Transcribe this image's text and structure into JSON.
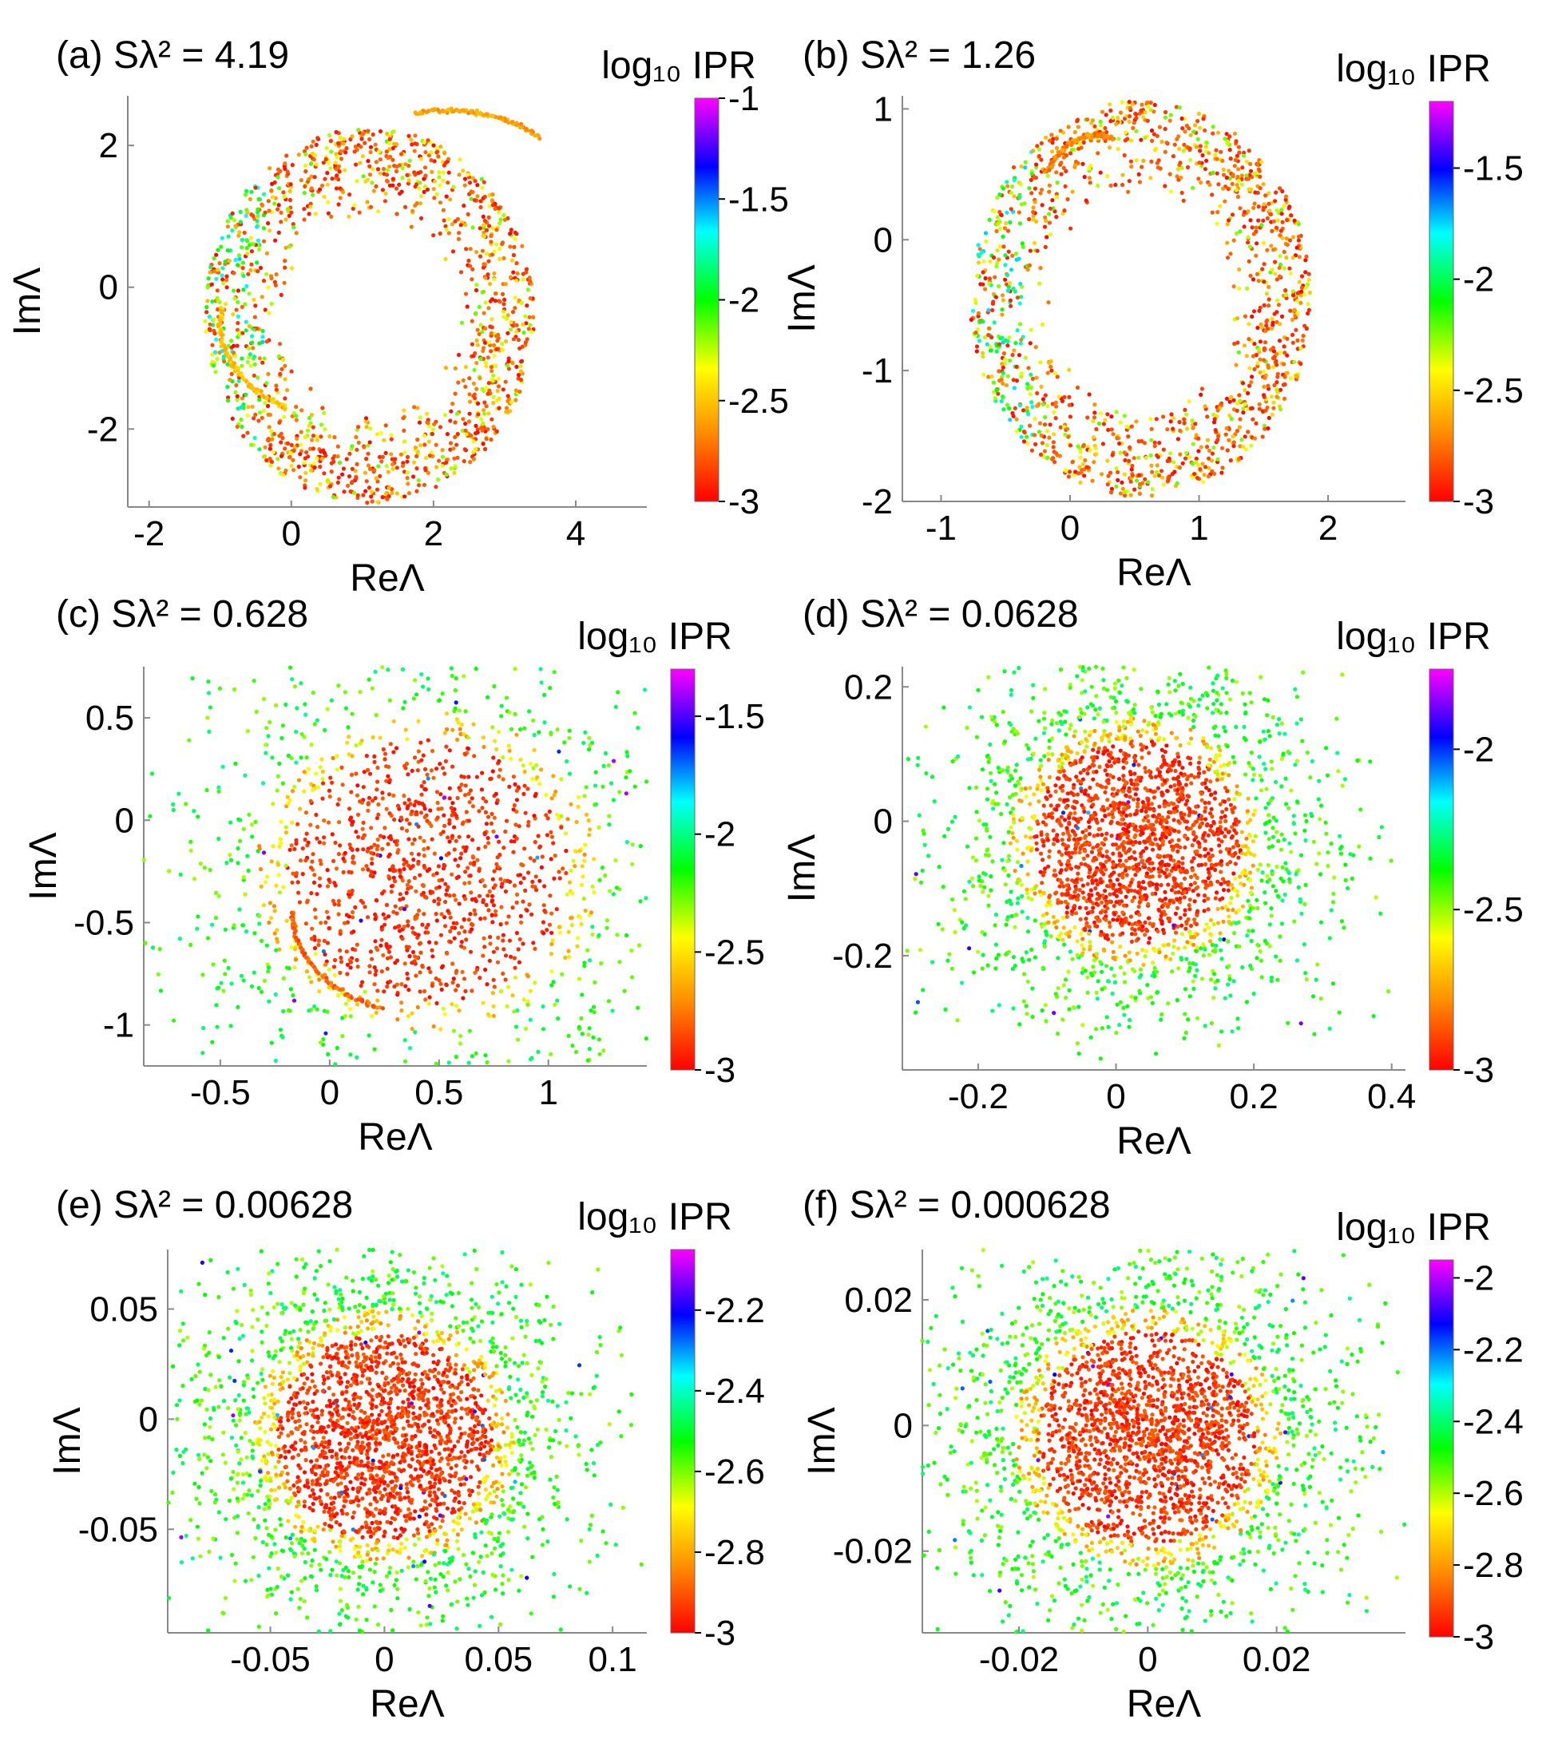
{
  "colors": {
    "scale_stops": [
      "#ff0000",
      "#ff8c00",
      "#ffff00",
      "#00ff00",
      "#00ffff",
      "#0000ff",
      "#ff00ff"
    ],
    "axis": "#888888",
    "text": "#000000"
  },
  "chart_data": [
    {
      "type": "scatter",
      "label": "(a)",
      "title": "Sλ² = 4.19",
      "xlabel": "ReΛ",
      "ylabel": "ImΛ",
      "colorbar_label": "log₁₀ IPR",
      "xlim": [
        -2.3,
        5.0
      ],
      "ylim": [
        -3.1,
        2.7
      ],
      "xticks": [
        -2,
        0,
        2,
        4
      ],
      "yticks": [
        -2,
        0,
        2
      ],
      "cbar_range": [
        -3,
        -1
      ],
      "cbar_ticks": [
        -1,
        -1.5,
        -2,
        -2.5,
        -3
      ],
      "distribution": "ring",
      "center": [
        1.1,
        -0.4
      ],
      "radius": 2.1,
      "n_points": 1400,
      "arcs": [
        {
          "cx": 2.2,
          "cy": -0.4,
          "rx": 2.6,
          "ry": 2.9,
          "from": 60,
          "to": 100,
          "ipr": -2.6
        },
        {
          "cx": 0.9,
          "cy": -0.5,
          "rx": 1.9,
          "ry": 1.4,
          "from": 170,
          "to": 240,
          "ipr": -2.5
        }
      ]
    },
    {
      "type": "scatter",
      "label": "(b)",
      "title": "Sλ² = 1.26",
      "xlabel": "ReΛ",
      "ylabel": "ImΛ",
      "colorbar_label": "log₁₀ IPR",
      "xlim": [
        -1.3,
        2.6
      ],
      "ylim": [
        -2.0,
        1.1
      ],
      "xticks": [
        -1,
        0,
        1,
        2
      ],
      "yticks": [
        -2,
        -1,
        0,
        1
      ],
      "cbar_range": [
        -3,
        -1.2
      ],
      "cbar_ticks": [
        -1.5,
        -2,
        -2.5,
        -3
      ],
      "distribution": "ring",
      "center": [
        0.55,
        -0.45
      ],
      "radius": 1.2,
      "n_points": 1400,
      "arcs": [
        {
          "cx": 0.2,
          "cy": 0.0,
          "rx": 0.5,
          "ry": 0.8,
          "from": 75,
          "to": 140,
          "ipr": -2.7
        }
      ]
    },
    {
      "type": "scatter",
      "label": "(c)",
      "title": "Sλ² = 0.628",
      "xlabel": "ReΛ",
      "ylabel": "ImΛ",
      "colorbar_label": "log₁₀ IPR",
      "xlim": [
        -0.85,
        1.45
      ],
      "ylim": [
        -1.2,
        0.75
      ],
      "xticks": [
        -0.5,
        0,
        0.5,
        1
      ],
      "yticks": [
        -1,
        -0.5,
        0,
        0.5
      ],
      "cbar_range": [
        -3,
        -1.3
      ],
      "cbar_ticks": [
        -1.5,
        -2,
        -2.5,
        -3
      ],
      "distribution": "disc",
      "center": [
        0.45,
        -0.25
      ],
      "radius": 0.68,
      "n_points": 1700,
      "arcs": [
        {
          "cx": 0.45,
          "cy": -0.45,
          "rx": 0.62,
          "ry": 0.5,
          "from": 180,
          "to": 250,
          "ipr": -2.8
        }
      ]
    },
    {
      "type": "scatter",
      "label": "(d)",
      "title": "Sλ² = 0.0628",
      "xlabel": "ReΛ",
      "ylabel": "ImΛ",
      "colorbar_label": "log₁₀ IPR",
      "xlim": [
        -0.31,
        0.42
      ],
      "ylim": [
        -0.37,
        0.23
      ],
      "xticks": [
        -0.2,
        0,
        0.2,
        0.4
      ],
      "yticks": [
        -0.2,
        0,
        0.2
      ],
      "cbar_range": [
        -3,
        -1.75
      ],
      "cbar_ticks": [
        -2,
        -2.5,
        -3
      ],
      "distribution": "disc",
      "center": [
        0.03,
        -0.03
      ],
      "radius": 0.16,
      "n_points": 2600,
      "arcs": []
    },
    {
      "type": "scatter",
      "label": "(e)",
      "title": "Sλ² = 0.00628",
      "xlabel": "ReΛ",
      "ylabel": "ImΛ",
      "colorbar_label": "log₁₀ IPR",
      "xlim": [
        -0.095,
        0.115
      ],
      "ylim": [
        -0.097,
        0.077
      ],
      "xticks": [
        -0.05,
        0,
        0.05,
        0.1
      ],
      "yticks": [
        -0.05,
        0,
        0.05
      ],
      "cbar_range": [
        -3,
        -2.05
      ],
      "cbar_ticks": [
        -2.2,
        -2.4,
        -2.6,
        -2.8,
        -3
      ],
      "distribution": "disc",
      "center": [
        0.0,
        -0.008
      ],
      "radius": 0.05,
      "n_points": 2800,
      "arcs": []
    },
    {
      "type": "scatter",
      "label": "(f)",
      "title": "Sλ² = 0.000628",
      "xlabel": "ReΛ",
      "ylabel": "ImΛ",
      "colorbar_label": "log₁₀ IPR",
      "xlim": [
        -0.035,
        0.04
      ],
      "ylim": [
        -0.033,
        0.028
      ],
      "xticks": [
        -0.02,
        0,
        0.02
      ],
      "yticks": [
        -0.02,
        0,
        0.02
      ],
      "cbar_range": [
        -3,
        -1.95
      ],
      "cbar_ticks": [
        -2,
        -2.2,
        -2.4,
        -2.6,
        -2.8,
        -3
      ],
      "distribution": "disc",
      "center": [
        0.0,
        -0.002
      ],
      "radius": 0.018,
      "n_points": 2800,
      "arcs": []
    }
  ]
}
